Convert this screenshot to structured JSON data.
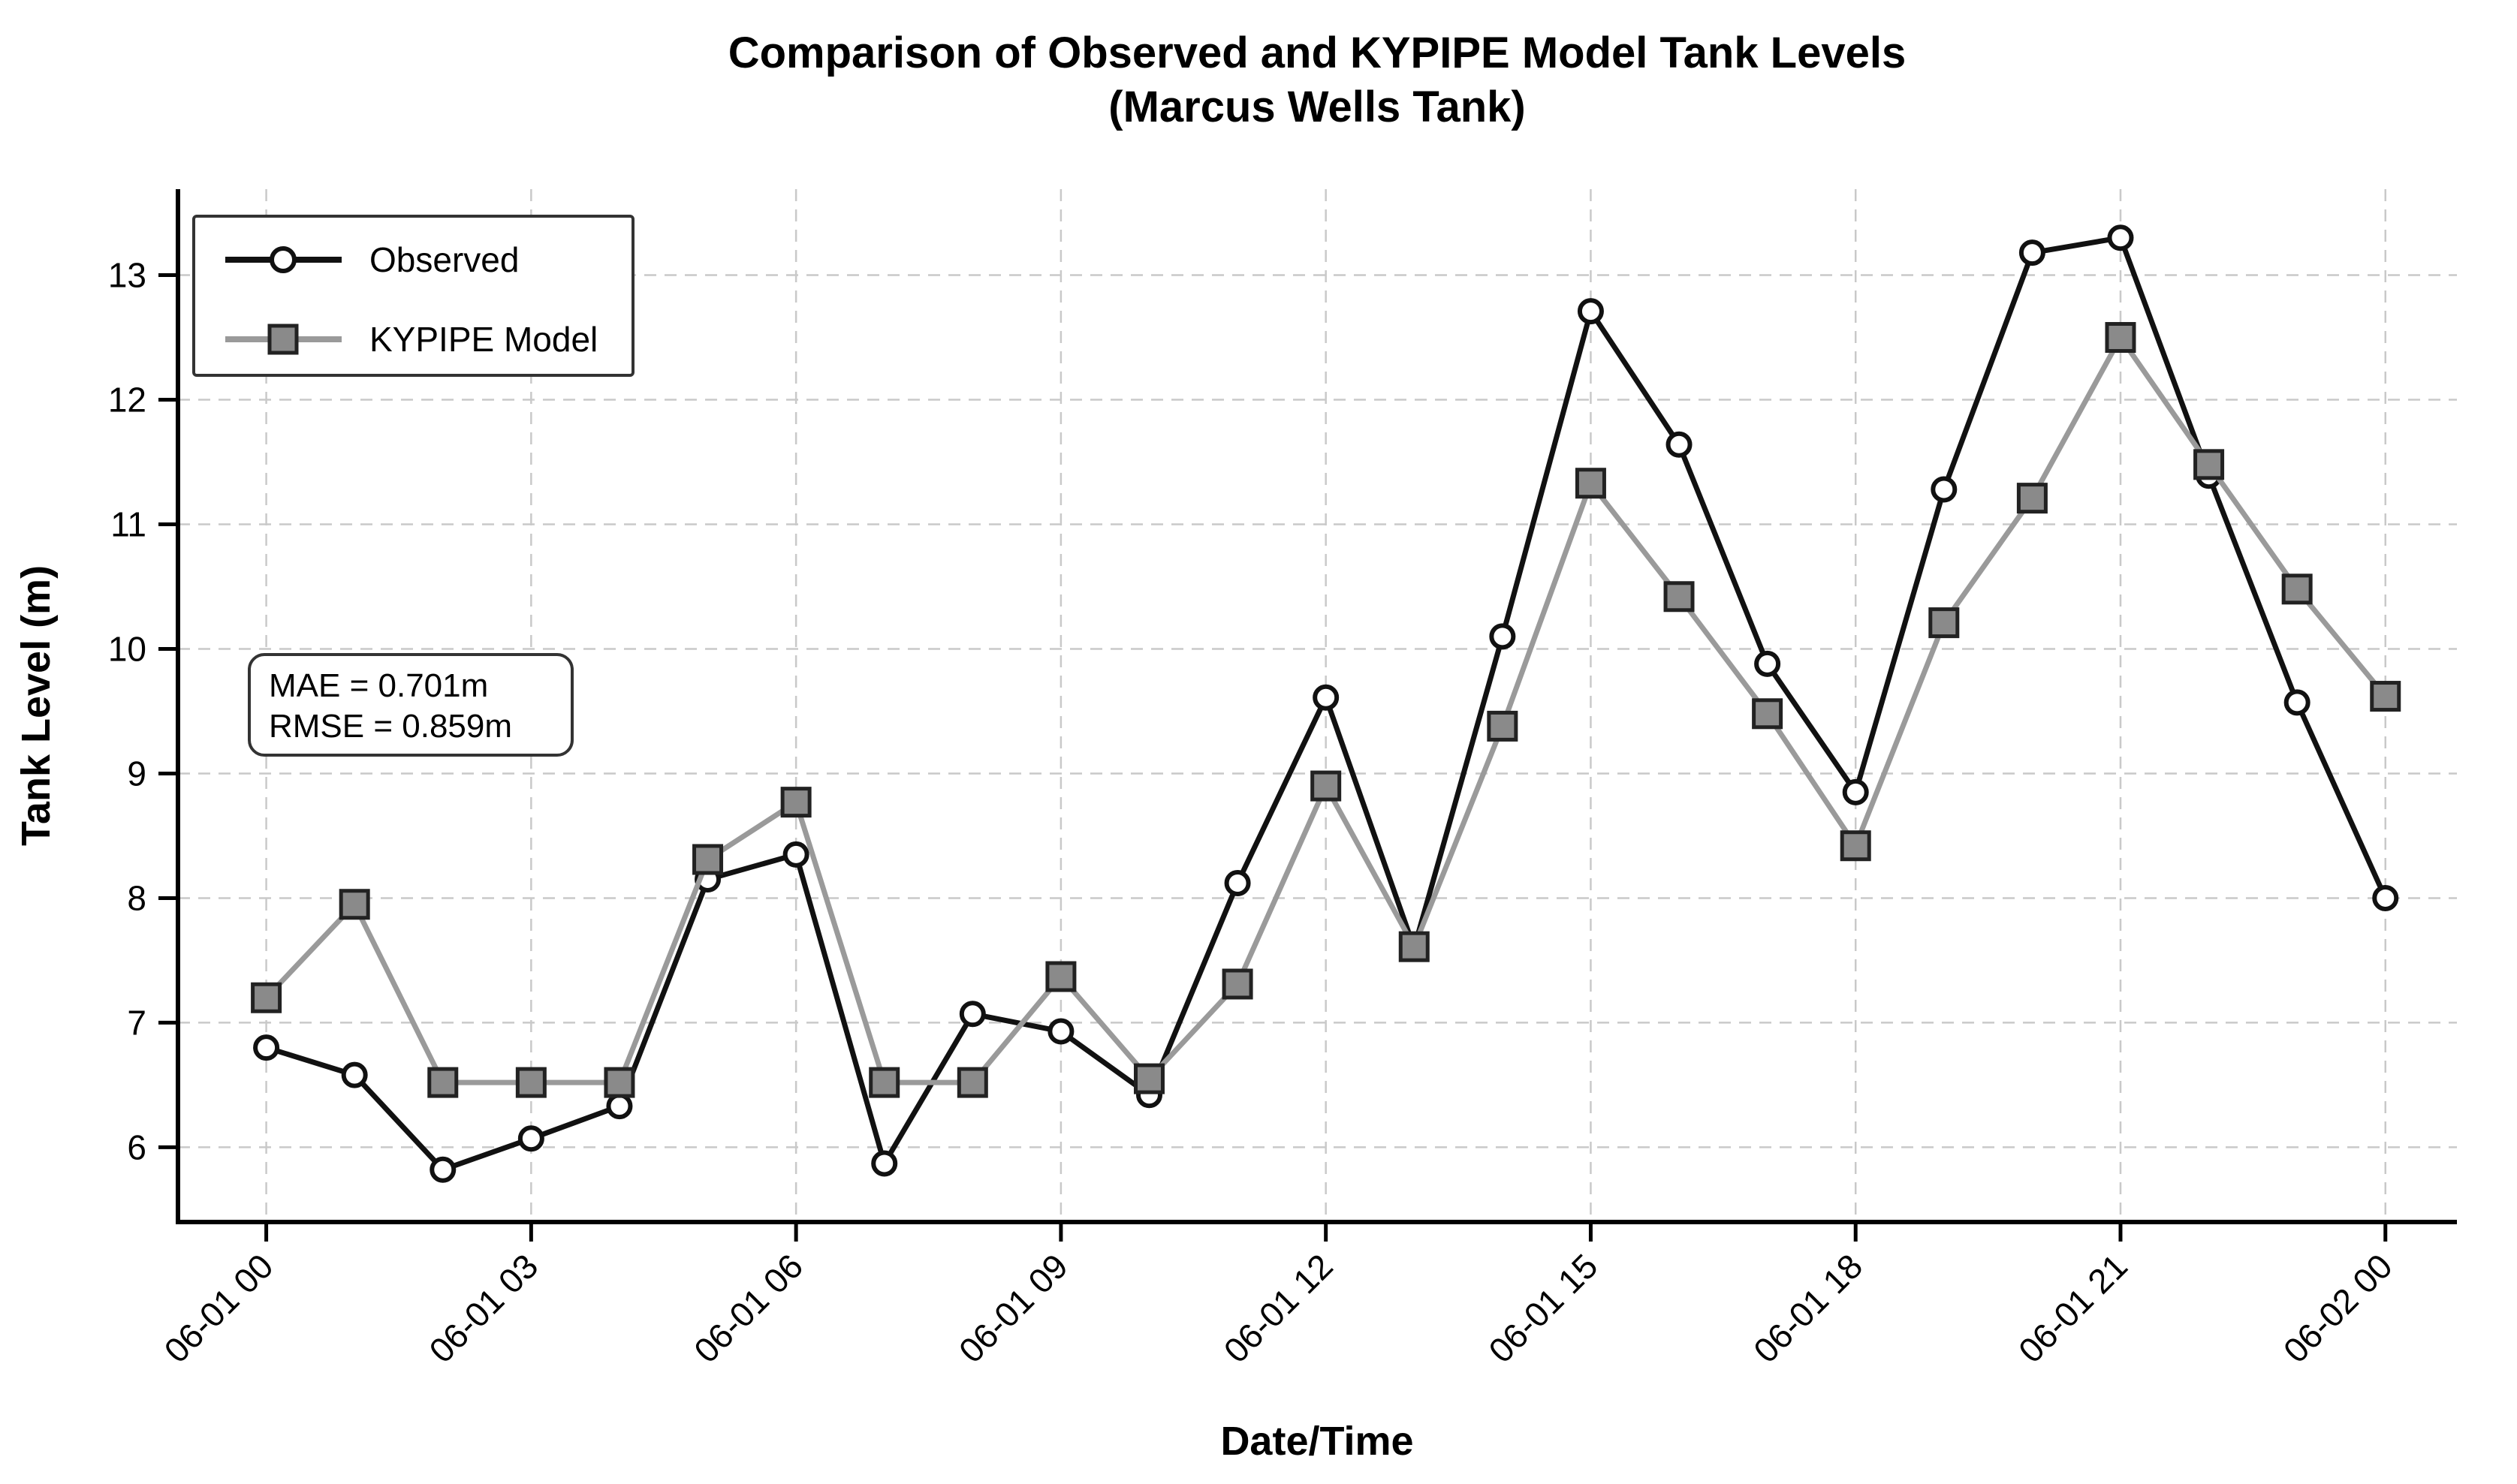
{
  "title": {
    "line1": "Comparison of Observed and KYPIPE Model Tank Levels",
    "line2": "(Marcus Wells Tank)"
  },
  "annotation": {
    "mae_line": "MAE = 0.701m",
    "rmse_line": "RMSE = 0.859m"
  },
  "legend": {
    "observed_label": "Observed",
    "kypipe_label": "KYPIPE Model"
  },
  "colors": {
    "observed_line": "#111111",
    "observed_marker_fill": "#ffffff",
    "kypipe_line": "#9a9a9a",
    "kypipe_marker_fill": "#8a8a8a",
    "marker_edge": "#222222",
    "grid": "#c9c9c9",
    "spine": "#000000",
    "background": "#ffffff"
  },
  "chart_data": {
    "type": "line",
    "title": "Comparison of Observed and KYPIPE Model Tank Levels (Marcus Wells Tank)",
    "xlabel": "Date/Time",
    "ylabel": "Tank Level (m)",
    "grid": true,
    "legend_position": "upper left",
    "xlim": [
      -1.0,
      24.81
    ],
    "ylim": [
      5.4,
      13.69
    ],
    "x_hours": [
      0,
      1,
      2,
      3,
      4,
      5,
      6,
      7,
      8,
      9,
      10,
      11,
      12,
      13,
      14,
      15,
      16,
      17,
      18,
      19,
      20,
      21,
      22,
      23,
      24
    ],
    "x_tick_hours": [
      0,
      3,
      6,
      9,
      12,
      15,
      18,
      21,
      24
    ],
    "x_tick_labels": [
      "06-01 00",
      "06-01 03",
      "06-01 06",
      "06-01 09",
      "06-01 12",
      "06-01 15",
      "06-01 18",
      "06-01 21",
      "06-02 00"
    ],
    "y_ticks": [
      6,
      7,
      8,
      9,
      10,
      11,
      12,
      13
    ],
    "series": [
      {
        "name": "Observed",
        "marker": "circle",
        "values": [
          6.8,
          6.58,
          5.82,
          6.07,
          6.33,
          8.15,
          8.35,
          5.87,
          7.07,
          6.93,
          6.42,
          8.12,
          9.61,
          7.6,
          10.1,
          12.71,
          11.64,
          9.88,
          8.85,
          11.28,
          13.18,
          13.3,
          11.39,
          9.57,
          8.0
        ]
      },
      {
        "name": "KYPIPE Model",
        "marker": "square",
        "values": [
          7.2,
          7.95,
          6.52,
          6.52,
          6.52,
          8.31,
          8.77,
          6.52,
          6.52,
          7.37,
          6.55,
          7.31,
          8.9,
          7.61,
          9.38,
          11.33,
          10.42,
          9.48,
          8.42,
          10.21,
          11.21,
          12.5,
          11.48,
          10.48,
          9.62
        ]
      }
    ]
  }
}
